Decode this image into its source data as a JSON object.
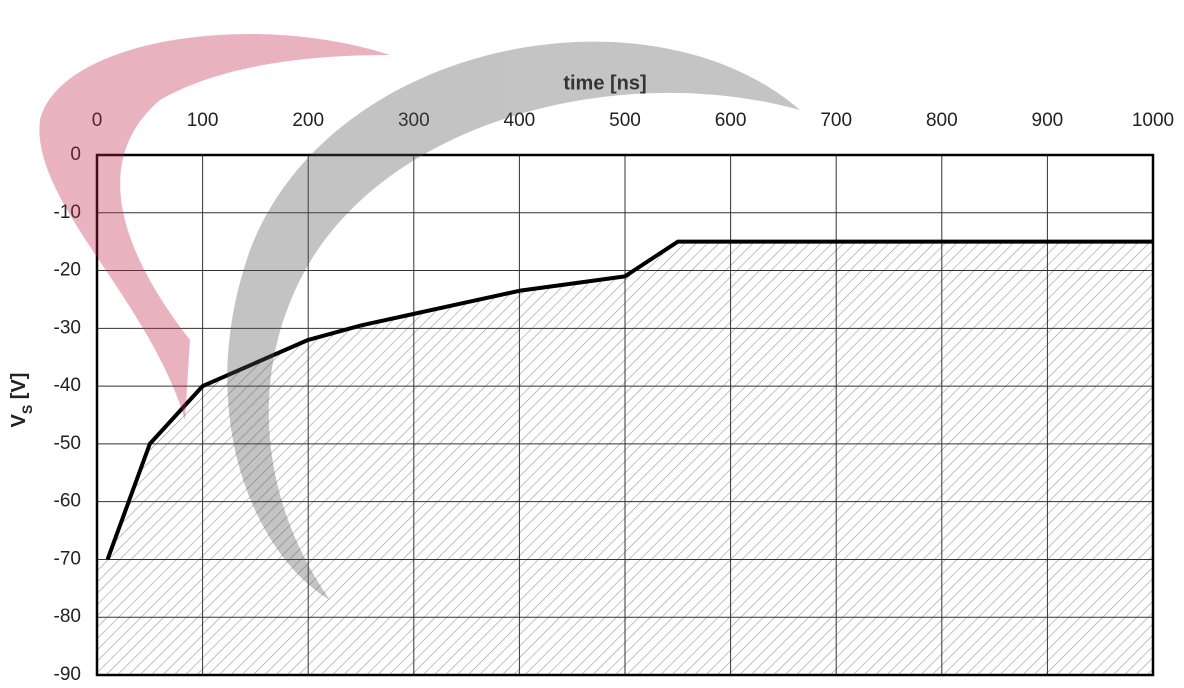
{
  "chart_data": {
    "type": "line",
    "x_label": "time  [ns]",
    "y_label": [
      "V",
      "S",
      " [V]"
    ],
    "x": [
      10,
      50,
      100,
      200,
      250,
      300,
      350,
      400,
      500,
      550,
      1000
    ],
    "series": [
      {
        "color": "#000000",
        "values": [
          -70,
          -50,
          -40,
          -32,
          -29.5,
          -27.5,
          -25.5,
          -23.5,
          -21,
          -15,
          -15
        ]
      }
    ],
    "area_under": true,
    "xlim": [
      0,
      1000
    ],
    "xticks": [
      0,
      100,
      200,
      300,
      400,
      500,
      600,
      700,
      800,
      900,
      1000
    ],
    "ylim": [
      -90,
      0
    ],
    "yticks": [
      0,
      -10,
      -20,
      -30,
      -40,
      -50,
      -60,
      -70,
      -80,
      -90
    ],
    "grid": true,
    "x_axis_position": "top"
  }
}
